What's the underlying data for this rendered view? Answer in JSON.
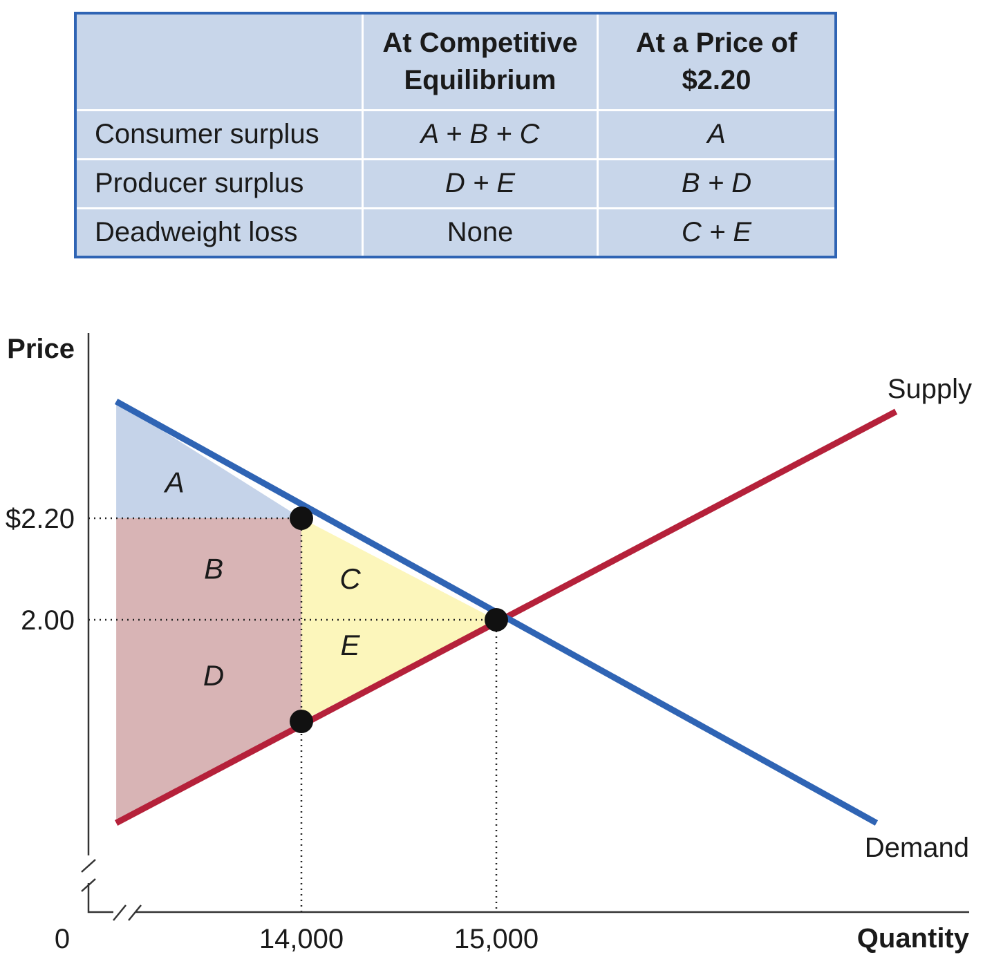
{
  "table": {
    "columns": [
      "",
      "At Competitive Equilibrium",
      "At a Price of $2.20"
    ],
    "column_lines": [
      [],
      [
        "At Competitive",
        "Equilibrium"
      ],
      [
        "At a Price of",
        "$2.20"
      ]
    ],
    "rows": [
      {
        "label": "Consumer surplus",
        "competitive": "A + B + C",
        "at_price": "A"
      },
      {
        "label": "Producer surplus",
        "competitive": "D + E",
        "at_price": "B + D"
      },
      {
        "label": "Deadweight loss",
        "competitive": "None",
        "at_price": "C + E"
      }
    ]
  },
  "chart_data": {
    "type": "line",
    "xlabel": "Quantity",
    "ylabel": "Price",
    "x_origin_label": "0",
    "x_ticks": [
      14000,
      15000
    ],
    "x_tick_labels": [
      "14,000",
      "15,000"
    ],
    "y_ticks": [
      2.2,
      2.0
    ],
    "y_tick_labels": [
      "$2.20",
      "2.00"
    ],
    "axis_breaks": true,
    "series": [
      {
        "name": "Supply",
        "color": "#b5213a",
        "points": [
          [
            13050,
            1.6
          ],
          [
            13450,
            1.73
          ],
          [
            13810,
            1.84
          ],
          [
            14000,
            1.8
          ],
          [
            15000,
            2.0
          ],
          [
            17050,
            2.41
          ]
        ]
      },
      {
        "name": "Demand",
        "color": "#2f64b4",
        "points": [
          [
            13050,
            2.43
          ],
          [
            14000,
            2.2
          ],
          [
            15000,
            2.0
          ],
          [
            16950,
            1.6
          ]
        ]
      }
    ],
    "key_points": [
      {
        "x": 14000,
        "y": 2.2
      },
      {
        "x": 14000,
        "y": 1.8
      },
      {
        "x": 15000,
        "y": 2.0
      }
    ],
    "regions": [
      {
        "label": "A",
        "color": "#c5d3e9",
        "polygon": [
          [
            13050,
            2.43
          ],
          [
            14000,
            2.2
          ],
          [
            13050,
            2.2
          ]
        ]
      },
      {
        "label": "B",
        "color": "#d8b4b5",
        "polygon": [
          [
            13050,
            2.2
          ],
          [
            14000,
            2.2
          ],
          [
            14000,
            2.0
          ],
          [
            13050,
            2.0
          ]
        ]
      },
      {
        "label": "C",
        "color": "#fcf6bb",
        "polygon": [
          [
            14000,
            2.2
          ],
          [
            15000,
            2.0
          ],
          [
            14000,
            2.0
          ]
        ]
      },
      {
        "label": "D",
        "color": "#d8b4b5",
        "polygon": [
          [
            13050,
            2.0
          ],
          [
            14000,
            2.0
          ],
          [
            14000,
            1.8
          ],
          [
            13050,
            1.6
          ]
        ]
      },
      {
        "label": "E",
        "color": "#fcf6bb",
        "polygon": [
          [
            14000,
            2.0
          ],
          [
            15000,
            2.0
          ],
          [
            14000,
            1.8
          ]
        ]
      }
    ],
    "region_label_positions": {
      "A": [
        13350,
        2.27
      ],
      "B": [
        13550,
        2.1
      ],
      "C": [
        14250,
        2.08
      ],
      "D": [
        13550,
        1.89
      ],
      "E": [
        14250,
        1.95
      ]
    }
  }
}
